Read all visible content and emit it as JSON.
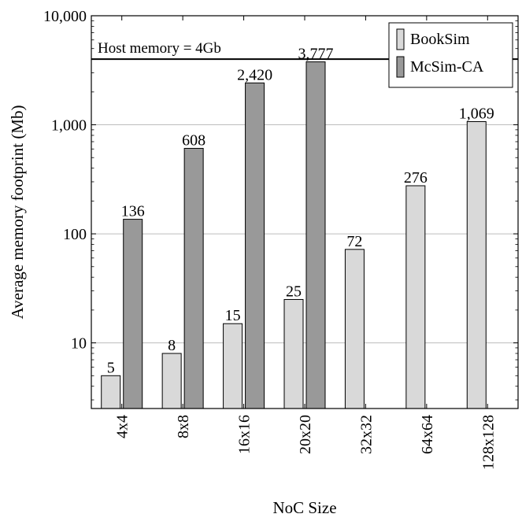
{
  "chart_data": {
    "type": "bar",
    "xlabel": "NoC Size",
    "ylabel": "Average memory footprint (Mb)",
    "yscale": "log",
    "ylim": [
      2.5,
      10000
    ],
    "yticks": [
      10,
      100,
      1000,
      10000
    ],
    "ytick_labels": [
      "10",
      "100",
      "1,000",
      "10,000"
    ],
    "categories": [
      "4x4",
      "8x8",
      "16x16",
      "20x20",
      "32x32",
      "64x64",
      "128x128"
    ],
    "series": [
      {
        "name": "BookSim",
        "color": "#d9d9d9",
        "values": [
          5,
          8,
          15,
          25,
          72,
          276,
          1069
        ],
        "labels": [
          "5",
          "8",
          "15",
          "25",
          "72",
          "276",
          "1,069"
        ]
      },
      {
        "name": "McSim-CA",
        "color": "#999999",
        "values": [
          136,
          608,
          2420,
          3777,
          null,
          null,
          null
        ],
        "labels": [
          "136",
          "608",
          "2,420",
          "3,777",
          null,
          null,
          null
        ]
      }
    ],
    "reference_line": {
      "value": 4000,
      "label": "Host memory = 4Gb"
    },
    "legend": "top-right",
    "grid": "horizontal major"
  }
}
